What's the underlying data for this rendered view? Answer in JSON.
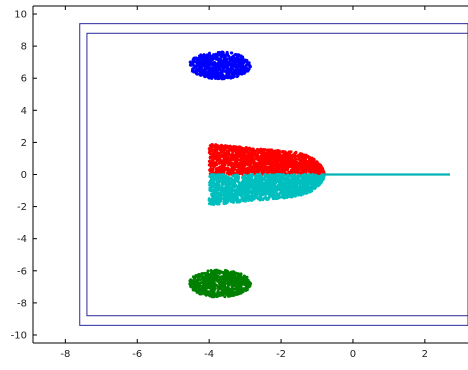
{
  "chart_data": {
    "type": "scatter",
    "title": "",
    "xlabel": "",
    "ylabel": "",
    "xlim": [
      -8.9,
      3.2
    ],
    "ylim": [
      -10.5,
      10.5
    ],
    "xticks": [
      -8,
      -6,
      -4,
      -2,
      0,
      2
    ],
    "yticks": [
      -10,
      -8,
      -6,
      -4,
      -2,
      0,
      2,
      4,
      6,
      8,
      10
    ],
    "grid": false,
    "legend": "none",
    "rectangles": [
      {
        "x0": -7.6,
        "x1": 3.2,
        "y0": -9.4,
        "y1": 9.4,
        "color": "#2a2a9c"
      },
      {
        "x0": -7.4,
        "x1": 3.2,
        "y0": -8.8,
        "y1": 8.8,
        "color": "#2a2a9c"
      }
    ],
    "series": [
      {
        "color": "#0000ff",
        "shape": "ellipse",
        "center": [
          -3.7,
          6.8
        ],
        "radii": [
          0.9,
          0.9
        ]
      },
      {
        "color": "#008000",
        "shape": "ellipse",
        "center": [
          -3.7,
          -6.8
        ],
        "radii": [
          0.9,
          0.9
        ]
      },
      {
        "color": "#ff0000",
        "shape": "half-upper",
        "x_range": [
          -4.0,
          -0.8
        ],
        "y_max": 1.9
      },
      {
        "color": "#00bfbf",
        "shape": "half-lower",
        "x_range": [
          -4.0,
          -0.8
        ],
        "y_min": -1.9
      },
      {
        "color": "#00b3b3",
        "shape": "line",
        "x": [
          -0.8,
          2.7
        ],
        "y": [
          0,
          0
        ]
      }
    ]
  }
}
